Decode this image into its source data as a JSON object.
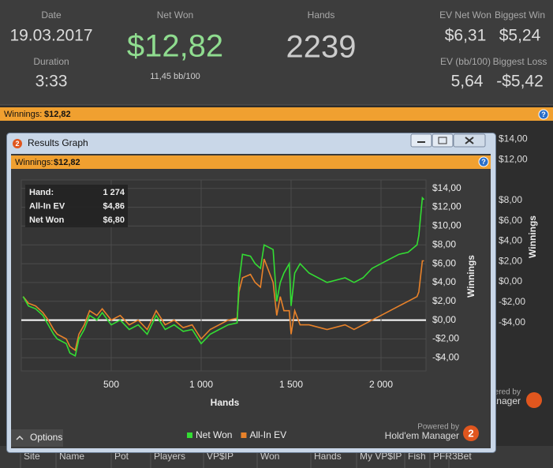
{
  "stats": {
    "date_label": "Date",
    "date": "19.03.2017",
    "duration_label": "Duration",
    "duration": "3:33",
    "net_won_label": "Net Won",
    "net_won": "$12,82",
    "bb100": "11,45 bb/100",
    "hands_label": "Hands",
    "hands": "2239",
    "ev_net_won_label": "EV Net Won",
    "ev_net_won": "$6,31",
    "biggest_win_label": "Biggest Win",
    "biggest_win": "$5,24",
    "ev_bb100_label": "EV (bb/100)",
    "ev_bb100": "5,64",
    "biggest_loss_label": "Biggest Loss",
    "biggest_loss": "-$5,42"
  },
  "summary_bar": {
    "label": "Winnings:",
    "value": "$12,82"
  },
  "background_graph": {
    "yticks": [
      {
        "value": 14,
        "label": "$14,00"
      },
      {
        "value": 12,
        "label": "$12,00"
      },
      {
        "value": 8,
        "label": "$8,00"
      },
      {
        "value": 6,
        "label": "$6,00"
      },
      {
        "value": 4,
        "label": "$4,00"
      },
      {
        "value": 2,
        "label": "$2,00"
      },
      {
        "value": 0,
        "label": "$0,00"
      },
      {
        "value": -2,
        "label": "-$2,00"
      },
      {
        "value": -4,
        "label": "-$4,00"
      }
    ],
    "ylabel": "Winnings",
    "powered_by": "Powered by",
    "brand": "Hold'em Manager"
  },
  "table_header": [
    "Site",
    "Name",
    "Pot",
    "Players",
    "VP$IP",
    "Won",
    "Hands",
    "My VP$IP",
    "Fish",
    "PFR",
    "3Bet"
  ],
  "window": {
    "title": "Results Graph",
    "bar_label": "Winnings:",
    "bar_value": "$12,82",
    "options": "Options",
    "powered_by": "Powered by",
    "brand": "Hold'em Manager"
  },
  "tooltip": {
    "rows": [
      [
        "Hand:",
        "1 274"
      ],
      [
        "All-In EV",
        "$4,86"
      ],
      [
        "Net Won",
        "$6,80"
      ]
    ]
  },
  "chart_data": {
    "type": "line",
    "xlabel": "Hands",
    "ylabel": "Winnings",
    "x": [
      10,
      40,
      80,
      120,
      150,
      180,
      200,
      250,
      270,
      300,
      320,
      350,
      380,
      420,
      450,
      500,
      550,
      600,
      650,
      700,
      750,
      800,
      850,
      900,
      950,
      1000,
      1050,
      1100,
      1150,
      1200,
      1210,
      1230,
      1274,
      1300,
      1330,
      1350,
      1400,
      1420,
      1440,
      1460,
      1490,
      1500,
      1520,
      1550,
      1600,
      1700,
      1800,
      1850,
      1900,
      1950,
      2000,
      2050,
      2100,
      2150,
      2200,
      2210,
      2230,
      2239
    ],
    "series": [
      {
        "name": "Net Won",
        "color": "#33dd33",
        "values": [
          2.5,
          1.5,
          1.2,
          0.5,
          -0.5,
          -1.5,
          -2,
          -2.5,
          -3.5,
          -3.8,
          -2,
          -1,
          0.5,
          0,
          0.8,
          -0.5,
          0,
          -1,
          -0.5,
          -1.5,
          0.5,
          -1,
          -0.5,
          -1.2,
          -1,
          -2.5,
          -1.5,
          -1,
          -0.5,
          -0.3,
          4,
          7,
          6.8,
          6,
          5.5,
          8,
          7.5,
          2,
          4,
          5,
          6,
          1.5,
          5,
          6,
          5,
          4,
          4.5,
          4,
          4.5,
          5.5,
          6,
          6.5,
          7,
          7.2,
          8,
          9,
          13,
          12.8
        ]
      },
      {
        "name": "All-In EV",
        "color": "#e8822a",
        "values": [
          2.5,
          1.8,
          1.5,
          0.8,
          0,
          -1,
          -1.5,
          -2,
          -2.8,
          -3.2,
          -1.5,
          -0.5,
          1,
          0.5,
          1.2,
          0,
          0.5,
          -0.5,
          0,
          -1,
          1,
          -0.5,
          0,
          -0.8,
          -0.5,
          -2,
          -1,
          -0.5,
          0,
          0.2,
          3,
          4.5,
          4.86,
          4,
          3.5,
          6.5,
          4,
          0.5,
          2.5,
          1,
          1,
          -1.5,
          1,
          -0.5,
          -0.5,
          -1,
          -0.5,
          -1,
          -0.5,
          0,
          0.5,
          1,
          1.5,
          2,
          2.5,
          3,
          6.3,
          6.3
        ]
      }
    ],
    "xlim": [
      0,
      2250
    ],
    "ylim": [
      -5.4,
      14.9
    ],
    "xticks": [
      500,
      {
        "value": 1000,
        "label": "1 000"
      },
      {
        "value": 1500,
        "label": "1 500"
      },
      {
        "value": 2000,
        "label": "2 000"
      }
    ],
    "yticks": [
      {
        "value": 14,
        "label": "$14,00"
      },
      {
        "value": 12,
        "label": "$12,00"
      },
      {
        "value": 10,
        "label": "$10,00"
      },
      {
        "value": 8,
        "label": "$8,00"
      },
      {
        "value": 6,
        "label": "$6,00"
      },
      {
        "value": 4,
        "label": "$4,00"
      },
      {
        "value": 2,
        "label": "$2,00"
      },
      {
        "value": 0,
        "label": "$0,00"
      },
      {
        "value": -2,
        "label": "-$2,00"
      },
      {
        "value": -4,
        "label": "-$4,00"
      }
    ],
    "grid": true,
    "legend": "bottom"
  }
}
